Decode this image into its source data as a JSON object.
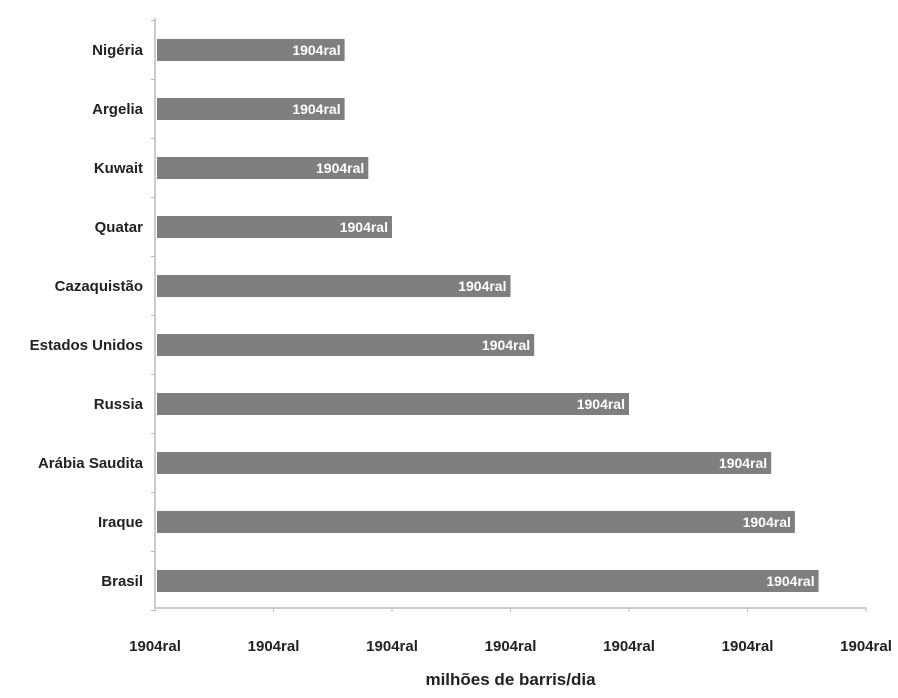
{
  "chart_data": {
    "type": "bar",
    "orientation": "horizontal",
    "categories": [
      "Nigéria",
      "Argelia",
      "Kuwait",
      "Quatar",
      "Cazaquistão",
      "Estados Unidos",
      "Russia",
      "Arábia Saudita",
      "Iraque",
      "Brasil"
    ],
    "values": [
      1.6,
      1.6,
      1.8,
      2.0,
      3.0,
      3.2,
      4.0,
      5.2,
      5.4,
      5.6
    ],
    "data_labels": [
      "1904ral",
      "1904ral",
      "1904ral",
      "1904ral",
      "1904ral",
      "1904ral",
      "1904ral",
      "1904ral",
      "1904ral",
      "1904ral"
    ],
    "xticks": [
      0,
      1,
      2,
      3,
      4,
      5,
      6
    ],
    "xtick_labels": [
      "1904ral",
      "1904ral",
      "1904ral",
      "1904ral",
      "1904ral",
      "1904ral",
      "1904ral"
    ],
    "xlim": [
      0,
      6
    ],
    "xlabel": "milhões de barris/dia",
    "ylabel": "",
    "title": "",
    "grid": false,
    "legend": "none",
    "bar_color": "#7f7f7f",
    "label_color": "#ffffff"
  }
}
